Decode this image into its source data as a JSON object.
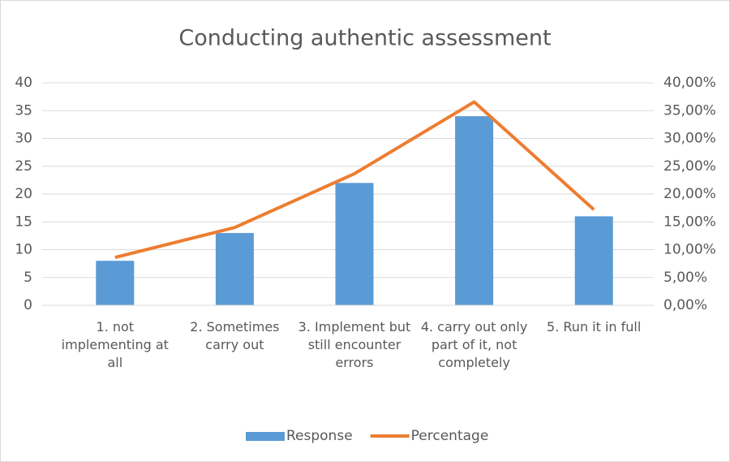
{
  "chart_data": {
    "type": "bar",
    "title": "Conducting authentic assessment",
    "categories": [
      "1. not implementing at all",
      "2. Sometimes carry out",
      "3. Implement but still encounter errors",
      "4. carry out only part of it, not completely",
      "5. Run it in full"
    ],
    "series": [
      {
        "name": "Response",
        "type": "bar",
        "color": "#5b9bd5",
        "values": [
          8,
          13,
          22,
          34,
          16
        ]
      },
      {
        "name": "Percentage",
        "type": "line",
        "axis": "y2",
        "color": "#ed7d31",
        "values": [
          8.6,
          13.98,
          23.66,
          36.56,
          17.2
        ]
      }
    ],
    "ylim": [
      0,
      40
    ],
    "yticks": [
      0,
      5,
      10,
      15,
      20,
      25,
      30,
      35,
      40
    ],
    "y2lim": [
      0,
      40
    ],
    "y2ticks": [
      {
        "value": 0,
        "label": "0,00%"
      },
      {
        "value": 5,
        "label": "5,00%"
      },
      {
        "value": 10,
        "label": "10,00%"
      },
      {
        "value": 15,
        "label": "15,00%"
      },
      {
        "value": 20,
        "label": "20,00%"
      },
      {
        "value": 25,
        "label": "25,00%"
      },
      {
        "value": 30,
        "label": "30,00%"
      },
      {
        "value": 35,
        "label": "35,00%"
      },
      {
        "value": 40,
        "label": "40,00%"
      }
    ],
    "grid": true,
    "legend": "bottom"
  }
}
